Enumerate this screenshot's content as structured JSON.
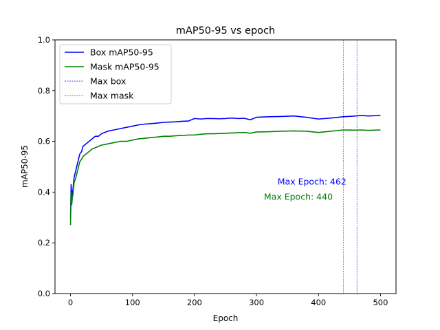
{
  "chart_data": {
    "type": "line",
    "title": "mAP50-95 vs epoch",
    "xlabel": "Epoch",
    "ylabel": "mAP50-95",
    "xlim": [
      -25,
      525
    ],
    "ylim": [
      0.0,
      1.0
    ],
    "xticks": [
      0,
      100,
      200,
      300,
      400,
      500
    ],
    "yticks": [
      0.0,
      0.2,
      0.4,
      0.6,
      0.8,
      1.0
    ],
    "xtick_labels": [
      "0",
      "100",
      "200",
      "300",
      "400",
      "500"
    ],
    "ytick_labels": [
      "0.0",
      "0.2",
      "0.4",
      "0.6",
      "0.8",
      "1.0"
    ],
    "grid": false,
    "legend_position": "top-left",
    "series": [
      {
        "name": "Box mAP50-95",
        "color": "#0000ff",
        "x": [
          0,
          1,
          2,
          3,
          4,
          5,
          6,
          8,
          10,
          12,
          15,
          18,
          20,
          25,
          30,
          35,
          40,
          45,
          50,
          60,
          70,
          80,
          90,
          100,
          110,
          120,
          130,
          140,
          150,
          160,
          170,
          180,
          190,
          200,
          210,
          220,
          230,
          240,
          250,
          260,
          270,
          280,
          290,
          300,
          320,
          340,
          360,
          380,
          400,
          420,
          440,
          460,
          470,
          480,
          490,
          500
        ],
        "values": [
          0.3,
          0.43,
          0.38,
          0.4,
          0.41,
          0.44,
          0.46,
          0.48,
          0.5,
          0.52,
          0.55,
          0.56,
          0.58,
          0.59,
          0.6,
          0.61,
          0.62,
          0.62,
          0.63,
          0.64,
          0.645,
          0.65,
          0.655,
          0.66,
          0.665,
          0.668,
          0.67,
          0.672,
          0.675,
          0.676,
          0.677,
          0.679,
          0.68,
          0.69,
          0.688,
          0.69,
          0.69,
          0.689,
          0.69,
          0.692,
          0.69,
          0.691,
          0.685,
          0.695,
          0.697,
          0.698,
          0.7,
          0.695,
          0.688,
          0.692,
          0.697,
          0.7,
          0.702,
          0.7,
          0.701,
          0.702
        ]
      },
      {
        "name": "Mask mAP50-95",
        "color": "#008000",
        "x": [
          0,
          1,
          2,
          3,
          4,
          5,
          6,
          8,
          10,
          12,
          15,
          18,
          20,
          25,
          30,
          35,
          40,
          45,
          50,
          60,
          70,
          80,
          90,
          100,
          110,
          120,
          130,
          140,
          150,
          160,
          170,
          180,
          190,
          200,
          210,
          220,
          230,
          240,
          250,
          260,
          270,
          280,
          290,
          300,
          320,
          340,
          360,
          380,
          400,
          420,
          440,
          460,
          470,
          480,
          490,
          500
        ],
        "values": [
          0.27,
          0.4,
          0.35,
          0.38,
          0.39,
          0.42,
          0.44,
          0.45,
          0.47,
          0.49,
          0.52,
          0.53,
          0.54,
          0.55,
          0.56,
          0.57,
          0.575,
          0.58,
          0.585,
          0.59,
          0.595,
          0.6,
          0.6,
          0.605,
          0.61,
          0.612,
          0.615,
          0.617,
          0.62,
          0.62,
          0.622,
          0.623,
          0.625,
          0.625,
          0.628,
          0.63,
          0.63,
          0.631,
          0.632,
          0.633,
          0.634,
          0.635,
          0.632,
          0.637,
          0.638,
          0.64,
          0.641,
          0.64,
          0.635,
          0.64,
          0.645,
          0.644,
          0.645,
          0.643,
          0.644,
          0.645
        ]
      }
    ],
    "vlines": [
      {
        "name": "Max box",
        "x": 462,
        "color": "#0000ff"
      },
      {
        "name": "Max mask",
        "x": 440,
        "color": "#008000"
      }
    ],
    "annotations": [
      {
        "text": "Max Epoch: 462",
        "x": 334,
        "y": 0.43,
        "color": "#0000ff"
      },
      {
        "text": "Max Epoch: 440",
        "x": 312,
        "y": 0.37,
        "color": "#008000"
      }
    ]
  }
}
